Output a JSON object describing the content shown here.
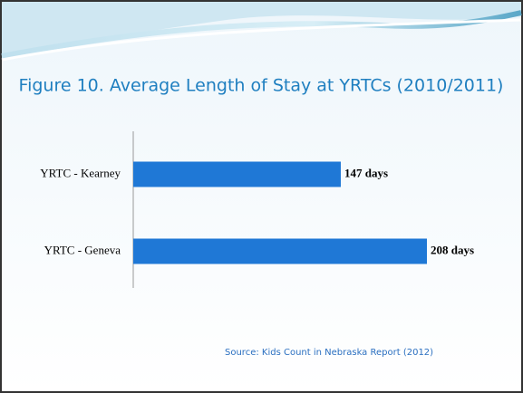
{
  "chart_data": {
    "type": "bar",
    "orientation": "horizontal",
    "title": "Figure 10. Average Length of Stay at YRTCs (2010/2011)",
    "categories": [
      "YRTC - Kearney",
      "YRTC - Geneva"
    ],
    "values": [
      147,
      208
    ],
    "value_labels": [
      "147 days",
      "208 days"
    ],
    "color": "#1f78d6",
    "source": "Source:  Kids Count in Nebraska Report (2012)"
  }
}
